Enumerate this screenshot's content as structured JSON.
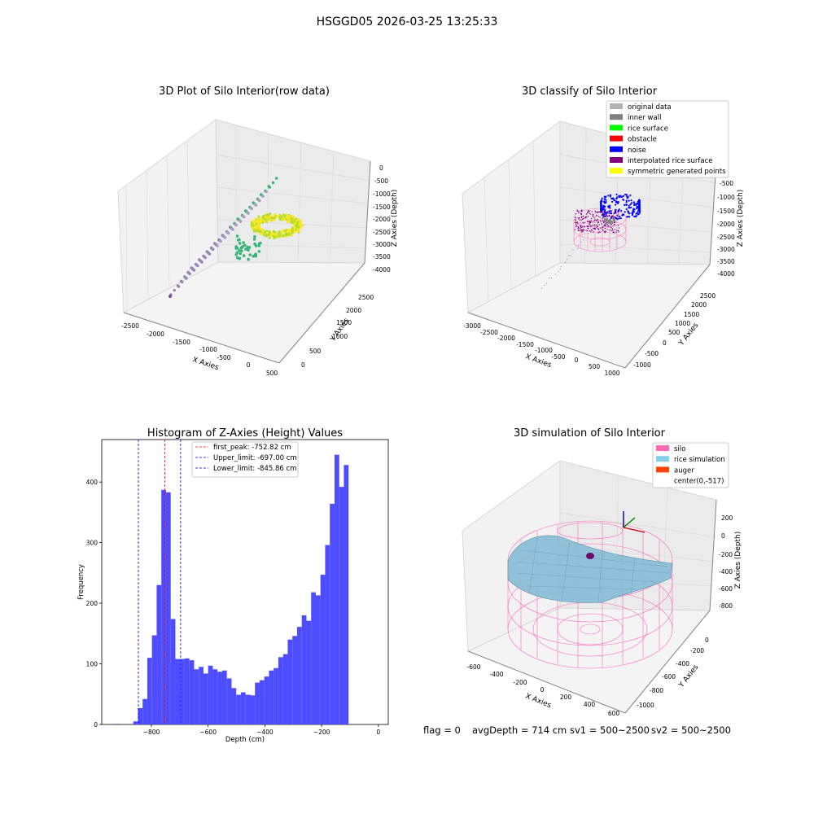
{
  "figure": {
    "suptitle": "HSGGD05 2026-03-25 13:25:33",
    "footer": {
      "flag": "flag = 0",
      "avg": "avgDepth = 714 cm",
      "sv1": "sv1 = 500~2500",
      "sv2": "sv2 = 500~2500"
    }
  },
  "chart_data": [
    {
      "type": "scatter",
      "title": "3D Plot of Silo Interior(row data)",
      "xlabel": "X Axies",
      "ylabel": "Y Axies",
      "zlabel": "Z Axies (Depth)",
      "xticks": [
        "-2500",
        "-2000",
        "-1500",
        "-1000",
        "-500",
        "0",
        "500"
      ],
      "yticks": [
        "0",
        "500",
        "1000",
        "1500",
        "2000",
        "2500"
      ],
      "zticks": [
        "0",
        "-500",
        "-1000",
        "-1500",
        "-2000",
        "-2500",
        "-3000",
        "-3500",
        "-4000"
      ],
      "colormap": [
        "#440154",
        "#31688e",
        "#35b779",
        "#b5de2b",
        "#fde725"
      ]
    },
    {
      "type": "scatter",
      "title": "3D classify of Silo Interior",
      "xlabel": "X Axies",
      "ylabel": "Y Axies",
      "zlabel": "Z Axies (Depth)",
      "xticks": [
        "-3000",
        "-2500",
        "-2000",
        "-1500",
        "-1000",
        "-500",
        "0",
        "500",
        "1000"
      ],
      "yticks": [
        "-1000",
        "-500",
        "0",
        "500",
        "1000",
        "1500",
        "2000",
        "2500"
      ],
      "zticks": [
        "0",
        "-500",
        "-1000",
        "-1500",
        "-2000",
        "-2500",
        "-3000",
        "-3500",
        "-4000"
      ],
      "legend": [
        {
          "label": "original data",
          "color": "#b3b3b3"
        },
        {
          "label": "inner wall",
          "color": "#808080"
        },
        {
          "label": "rice surface",
          "color": "#00ff00"
        },
        {
          "label": "obstacle",
          "color": "#ff0000"
        },
        {
          "label": "noise",
          "color": "#0000ff"
        },
        {
          "label": "interpolated rice surface",
          "color": "#800080"
        },
        {
          "label": "symmetric generated points",
          "color": "#ffff00"
        }
      ]
    },
    {
      "type": "bar",
      "title": "Histogram of Z-Axies (Height) Values",
      "xlabel": "Depth (cm)",
      "ylabel": "Frequency",
      "xlim": [
        -975,
        35
      ],
      "ylim": [
        0,
        470
      ],
      "xticks": [
        -800,
        -600,
        -400,
        -200,
        0
      ],
      "yticks": [
        0,
        100,
        200,
        300,
        400
      ],
      "bar_color": "#4d4dff",
      "bin_width": 16.5,
      "bins": [
        {
          "left": -930,
          "value": 1
        },
        {
          "left": -913.5,
          "value": 0
        },
        {
          "left": -897,
          "value": 0
        },
        {
          "left": -880.5,
          "value": 0
        },
        {
          "left": -864,
          "value": 5
        },
        {
          "left": -847.5,
          "value": 27
        },
        {
          "left": -831,
          "value": 42
        },
        {
          "left": -814.5,
          "value": 110
        },
        {
          "left": -798,
          "value": 147
        },
        {
          "left": -781.5,
          "value": 230
        },
        {
          "left": -765,
          "value": 387
        },
        {
          "left": -748.5,
          "value": 383
        },
        {
          "left": -732,
          "value": 174
        },
        {
          "left": -715.5,
          "value": 108
        },
        {
          "left": -699,
          "value": 108
        },
        {
          "left": -682.5,
          "value": 109
        },
        {
          "left": -666,
          "value": 106
        },
        {
          "left": -649.5,
          "value": 91
        },
        {
          "left": -633,
          "value": 95
        },
        {
          "left": -616.5,
          "value": 84
        },
        {
          "left": -600,
          "value": 97
        },
        {
          "left": -583.5,
          "value": 91
        },
        {
          "left": -567,
          "value": 87
        },
        {
          "left": -550.5,
          "value": 89
        },
        {
          "left": -534,
          "value": 76
        },
        {
          "left": -517.5,
          "value": 60
        },
        {
          "left": -501,
          "value": 49
        },
        {
          "left": -484.5,
          "value": 53
        },
        {
          "left": -468,
          "value": 49
        },
        {
          "left": -451.5,
          "value": 48
        },
        {
          "left": -435,
          "value": 69
        },
        {
          "left": -418.5,
          "value": 73
        },
        {
          "left": -402,
          "value": 79
        },
        {
          "left": -385.5,
          "value": 89
        },
        {
          "left": -369,
          "value": 93
        },
        {
          "left": -352.5,
          "value": 111
        },
        {
          "left": -336,
          "value": 116
        },
        {
          "left": -319.5,
          "value": 140
        },
        {
          "left": -303,
          "value": 146
        },
        {
          "left": -286.5,
          "value": 161
        },
        {
          "left": -270,
          "value": 180
        },
        {
          "left": -253.5,
          "value": 171
        },
        {
          "left": -237,
          "value": 218
        },
        {
          "left": -220.5,
          "value": 213
        },
        {
          "left": -204,
          "value": 247
        },
        {
          "left": -187.5,
          "value": 296
        },
        {
          "left": -171,
          "value": 364
        },
        {
          "left": -154.5,
          "value": 445
        },
        {
          "left": -138,
          "value": 392
        },
        {
          "left": -121.5,
          "value": 428
        }
      ],
      "lines": [
        {
          "label": "first_peak: -752.82 cm",
          "x": -752.82,
          "color": "#ff0000"
        },
        {
          "label": "Upper_limit: -697.00 cm",
          "x": -697.0,
          "color": "#0000ff"
        },
        {
          "label": "Lower_limit: -845.86 cm",
          "x": -845.86,
          "color": "#0000ff"
        }
      ]
    },
    {
      "type": "surface",
      "title": "3D simulation of Silo Interior",
      "xlabel": "X Axies",
      "ylabel": "Y Axies",
      "zlabel": "Z Axies (Depth)",
      "xticks": [
        "-600",
        "-400",
        "-200",
        "0",
        "200",
        "400",
        "600"
      ],
      "yticks": [
        "-1000",
        "-800",
        "-600",
        "-400",
        "-200",
        "0"
      ],
      "zticks": [
        "200",
        "0",
        "-200",
        "-400",
        "-600",
        "-800"
      ],
      "legend": [
        {
          "label": "silo",
          "color": "#ff69b4"
        },
        {
          "label": "rice simulation",
          "color": "#87ceeb"
        },
        {
          "label": "auger",
          "color": "#ff4500"
        },
        {
          "label": "center(0,-517)",
          "color": "#ffffff"
        }
      ]
    }
  ]
}
